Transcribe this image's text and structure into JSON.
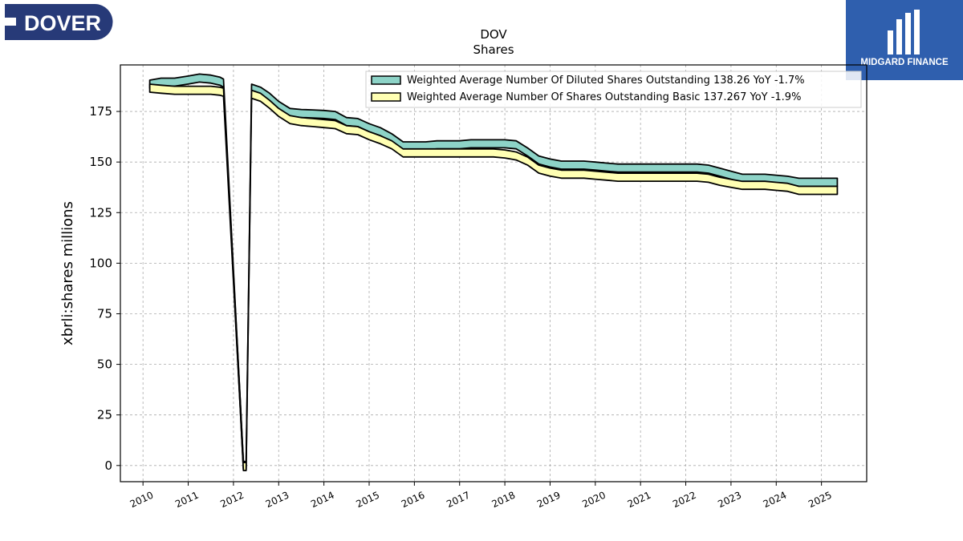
{
  "branding": {
    "left_logo_text": "DOVER",
    "left_logo_color": "#273a78",
    "right_logo_text": "MIDGARD FINANCE",
    "right_logo_color": "#2f5fae"
  },
  "chart_data": {
    "type": "area",
    "title": "DOV",
    "subtitle": "Shares",
    "xlabel": "",
    "ylabel": "xbrli:shares millions",
    "xlim": [
      2009.5,
      2026.0
    ],
    "ylim": [
      -8,
      198
    ],
    "x_ticks": [
      "2010",
      "2011",
      "2012",
      "2013",
      "2014",
      "2015",
      "2016",
      "2017",
      "2018",
      "2019",
      "2020",
      "2021",
      "2022",
      "2023",
      "2024",
      "2025"
    ],
    "y_ticks": [
      "0",
      "25",
      "50",
      "75",
      "100",
      "125",
      "150",
      "175"
    ],
    "grid": true,
    "legend_position": "top-right",
    "series": [
      {
        "name": "Weighted Average Number Of Diluted Shares Outstanding",
        "legend_label": "Weighted Average Number Of Diluted Shares Outstanding  138.26 YoY -1.7%",
        "color": "#8dd3c7",
        "points": [
          [
            2010.15,
            188.5
          ],
          [
            2010.4,
            189.5
          ],
          [
            2010.7,
            189.5
          ],
          [
            2011.0,
            190.5
          ],
          [
            2011.25,
            191.5
          ],
          [
            2011.5,
            191.0
          ],
          [
            2011.7,
            190.0
          ],
          [
            2011.78,
            189.0
          ],
          [
            2012.15,
            30.0
          ],
          [
            2012.22,
            0.0
          ],
          [
            2012.28,
            0.0
          ],
          [
            2012.4,
            186.5
          ],
          [
            2012.6,
            185.0
          ],
          [
            2012.8,
            182.0
          ],
          [
            2013.0,
            178.0
          ],
          [
            2013.25,
            174.5
          ],
          [
            2013.5,
            174.0
          ],
          [
            2013.75,
            173.8
          ],
          [
            2014.0,
            173.5
          ],
          [
            2014.25,
            173.0
          ],
          [
            2014.5,
            170.0
          ],
          [
            2014.75,
            169.5
          ],
          [
            2015.0,
            167.0
          ],
          [
            2015.25,
            165.0
          ],
          [
            2015.5,
            162.0
          ],
          [
            2015.75,
            158.0
          ],
          [
            2016.0,
            158.0
          ],
          [
            2016.25,
            158.0
          ],
          [
            2016.5,
            158.5
          ],
          [
            2016.75,
            158.5
          ],
          [
            2017.0,
            158.5
          ],
          [
            2017.25,
            159.0
          ],
          [
            2017.5,
            159.0
          ],
          [
            2017.75,
            159.0
          ],
          [
            2018.0,
            159.0
          ],
          [
            2018.25,
            158.5
          ],
          [
            2018.5,
            155.0
          ],
          [
            2018.75,
            151.0
          ],
          [
            2019.0,
            149.5
          ],
          [
            2019.25,
            148.5
          ],
          [
            2019.5,
            148.5
          ],
          [
            2019.75,
            148.5
          ],
          [
            2020.0,
            148.0
          ],
          [
            2020.25,
            147.5
          ],
          [
            2020.5,
            147.0
          ],
          [
            2020.75,
            147.0
          ],
          [
            2021.0,
            147.0
          ],
          [
            2021.25,
            147.0
          ],
          [
            2021.5,
            147.0
          ],
          [
            2021.75,
            147.0
          ],
          [
            2022.0,
            147.0
          ],
          [
            2022.25,
            147.0
          ],
          [
            2022.5,
            146.5
          ],
          [
            2022.75,
            145.0
          ],
          [
            2023.0,
            143.5
          ],
          [
            2023.25,
            142.0
          ],
          [
            2023.5,
            142.0
          ],
          [
            2023.75,
            142.0
          ],
          [
            2024.0,
            141.5
          ],
          [
            2024.25,
            141.0
          ],
          [
            2024.5,
            140.0
          ],
          [
            2024.75,
            140.0
          ],
          [
            2025.0,
            140.0
          ],
          [
            2025.25,
            140.0
          ],
          [
            2025.35,
            140.0
          ]
        ]
      },
      {
        "name": "Weighted Average Number Of Shares Outstanding Basic",
        "legend_label": "Weighted Average Number Of Shares Outstanding Basic  137.267 YoY -1.9%",
        "color": "#ffffb3",
        "points": [
          [
            2010.15,
            186.5
          ],
          [
            2010.4,
            186.0
          ],
          [
            2010.7,
            185.5
          ],
          [
            2011.0,
            185.5
          ],
          [
            2011.25,
            185.5
          ],
          [
            2011.5,
            185.5
          ],
          [
            2011.7,
            185.0
          ],
          [
            2011.78,
            184.5
          ],
          [
            2012.15,
            30.0
          ],
          [
            2012.22,
            -0.5
          ],
          [
            2012.28,
            -0.5
          ],
          [
            2012.4,
            183.5
          ],
          [
            2012.6,
            182.0
          ],
          [
            2012.8,
            178.5
          ],
          [
            2013.0,
            174.5
          ],
          [
            2013.25,
            171.0
          ],
          [
            2013.5,
            170.0
          ],
          [
            2013.75,
            169.5
          ],
          [
            2014.0,
            169.0
          ],
          [
            2014.25,
            168.5
          ],
          [
            2014.5,
            166.0
          ],
          [
            2014.75,
            165.5
          ],
          [
            2015.0,
            163.0
          ],
          [
            2015.25,
            161.0
          ],
          [
            2015.5,
            158.5
          ],
          [
            2015.75,
            154.5
          ],
          [
            2016.0,
            154.5
          ],
          [
            2016.25,
            154.5
          ],
          [
            2016.5,
            154.5
          ],
          [
            2016.75,
            154.5
          ],
          [
            2017.0,
            154.5
          ],
          [
            2017.25,
            154.5
          ],
          [
            2017.5,
            154.5
          ],
          [
            2017.75,
            154.5
          ],
          [
            2018.0,
            154.0
          ],
          [
            2018.25,
            153.0
          ],
          [
            2018.5,
            150.5
          ],
          [
            2018.75,
            146.5
          ],
          [
            2019.0,
            145.0
          ],
          [
            2019.25,
            144.0
          ],
          [
            2019.5,
            144.0
          ],
          [
            2019.75,
            144.0
          ],
          [
            2020.0,
            143.5
          ],
          [
            2020.25,
            143.0
          ],
          [
            2020.5,
            142.5
          ],
          [
            2020.75,
            142.5
          ],
          [
            2021.0,
            142.5
          ],
          [
            2021.25,
            142.5
          ],
          [
            2021.5,
            142.5
          ],
          [
            2021.75,
            142.5
          ],
          [
            2022.0,
            142.5
          ],
          [
            2022.25,
            142.5
          ],
          [
            2022.5,
            142.0
          ],
          [
            2022.75,
            140.5
          ],
          [
            2023.0,
            139.5
          ],
          [
            2023.25,
            138.5
          ],
          [
            2023.5,
            138.5
          ],
          [
            2023.75,
            138.5
          ],
          [
            2024.0,
            138.0
          ],
          [
            2024.25,
            137.5
          ],
          [
            2024.5,
            136.0
          ],
          [
            2024.75,
            136.0
          ],
          [
            2025.0,
            136.0
          ],
          [
            2025.25,
            136.0
          ],
          [
            2025.35,
            136.0
          ]
        ]
      }
    ]
  }
}
